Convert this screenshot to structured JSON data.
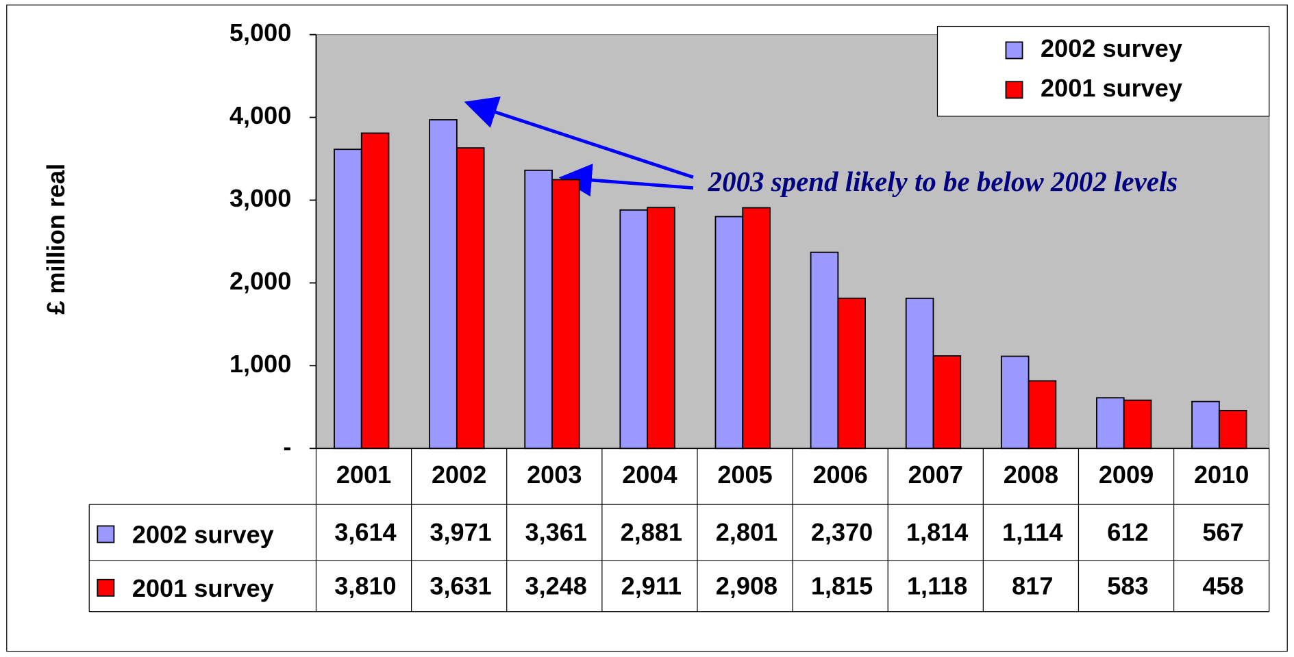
{
  "chart_data": {
    "type": "bar",
    "y_label": "£ million real",
    "annotation": "2003 spend likely to be below 2002 levels",
    "categories": [
      "2001",
      "2002",
      "2003",
      "2004",
      "2005",
      "2006",
      "2007",
      "2008",
      "2009",
      "2010"
    ],
    "series": [
      {
        "name": "2002 survey",
        "color": "#9999ff",
        "values": [
          3614,
          3971,
          3361,
          2881,
          2801,
          2370,
          1814,
          1114,
          612,
          567
        ],
        "value_labels": [
          "3,614",
          "3,971",
          "3,361",
          "2,881",
          "2,801",
          "2,370",
          "1,814",
          "1,114",
          "612",
          "567"
        ]
      },
      {
        "name": "2001 survey",
        "color": "#ff0000",
        "values": [
          3810,
          3631,
          3248,
          2911,
          2908,
          1815,
          1118,
          817,
          583,
          458
        ],
        "value_labels": [
          "3,810",
          "3,631",
          "3,248",
          "2,911",
          "2,908",
          "1,815",
          "1,118",
          "817",
          "583",
          "458"
        ]
      }
    ],
    "ylim": [
      0,
      5000
    ],
    "yticks": [
      {
        "value": 0,
        "label": "-"
      },
      {
        "value": 1000,
        "label": "1,000"
      },
      {
        "value": 2000,
        "label": "2,000"
      },
      {
        "value": 3000,
        "label": "3,000"
      },
      {
        "value": 4000,
        "label": "4,000"
      },
      {
        "value": 5000,
        "label": "5,000"
      }
    ],
    "legend": "upper right",
    "plot_background": "#c0c0c0"
  }
}
